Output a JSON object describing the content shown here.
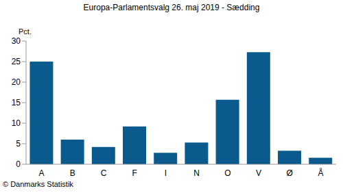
{
  "chart_data": {
    "type": "bar",
    "title": "Europa-Parlamentsvalg 26. maj 2019 - Sædding",
    "y_label": "Pct.",
    "source": "© Danmarks Statistik",
    "categories": [
      "A",
      "B",
      "C",
      "F",
      "I",
      "N",
      "O",
      "V",
      "Ø",
      "Å"
    ],
    "values": [
      25.0,
      6.0,
      4.2,
      9.2,
      2.8,
      5.3,
      15.7,
      27.3,
      3.3,
      1.6
    ],
    "color": "#0b5a8e",
    "ylim": [
      0,
      30
    ],
    "yticks": [
      0,
      5,
      10,
      15,
      20,
      25,
      30
    ],
    "grid": false
  }
}
